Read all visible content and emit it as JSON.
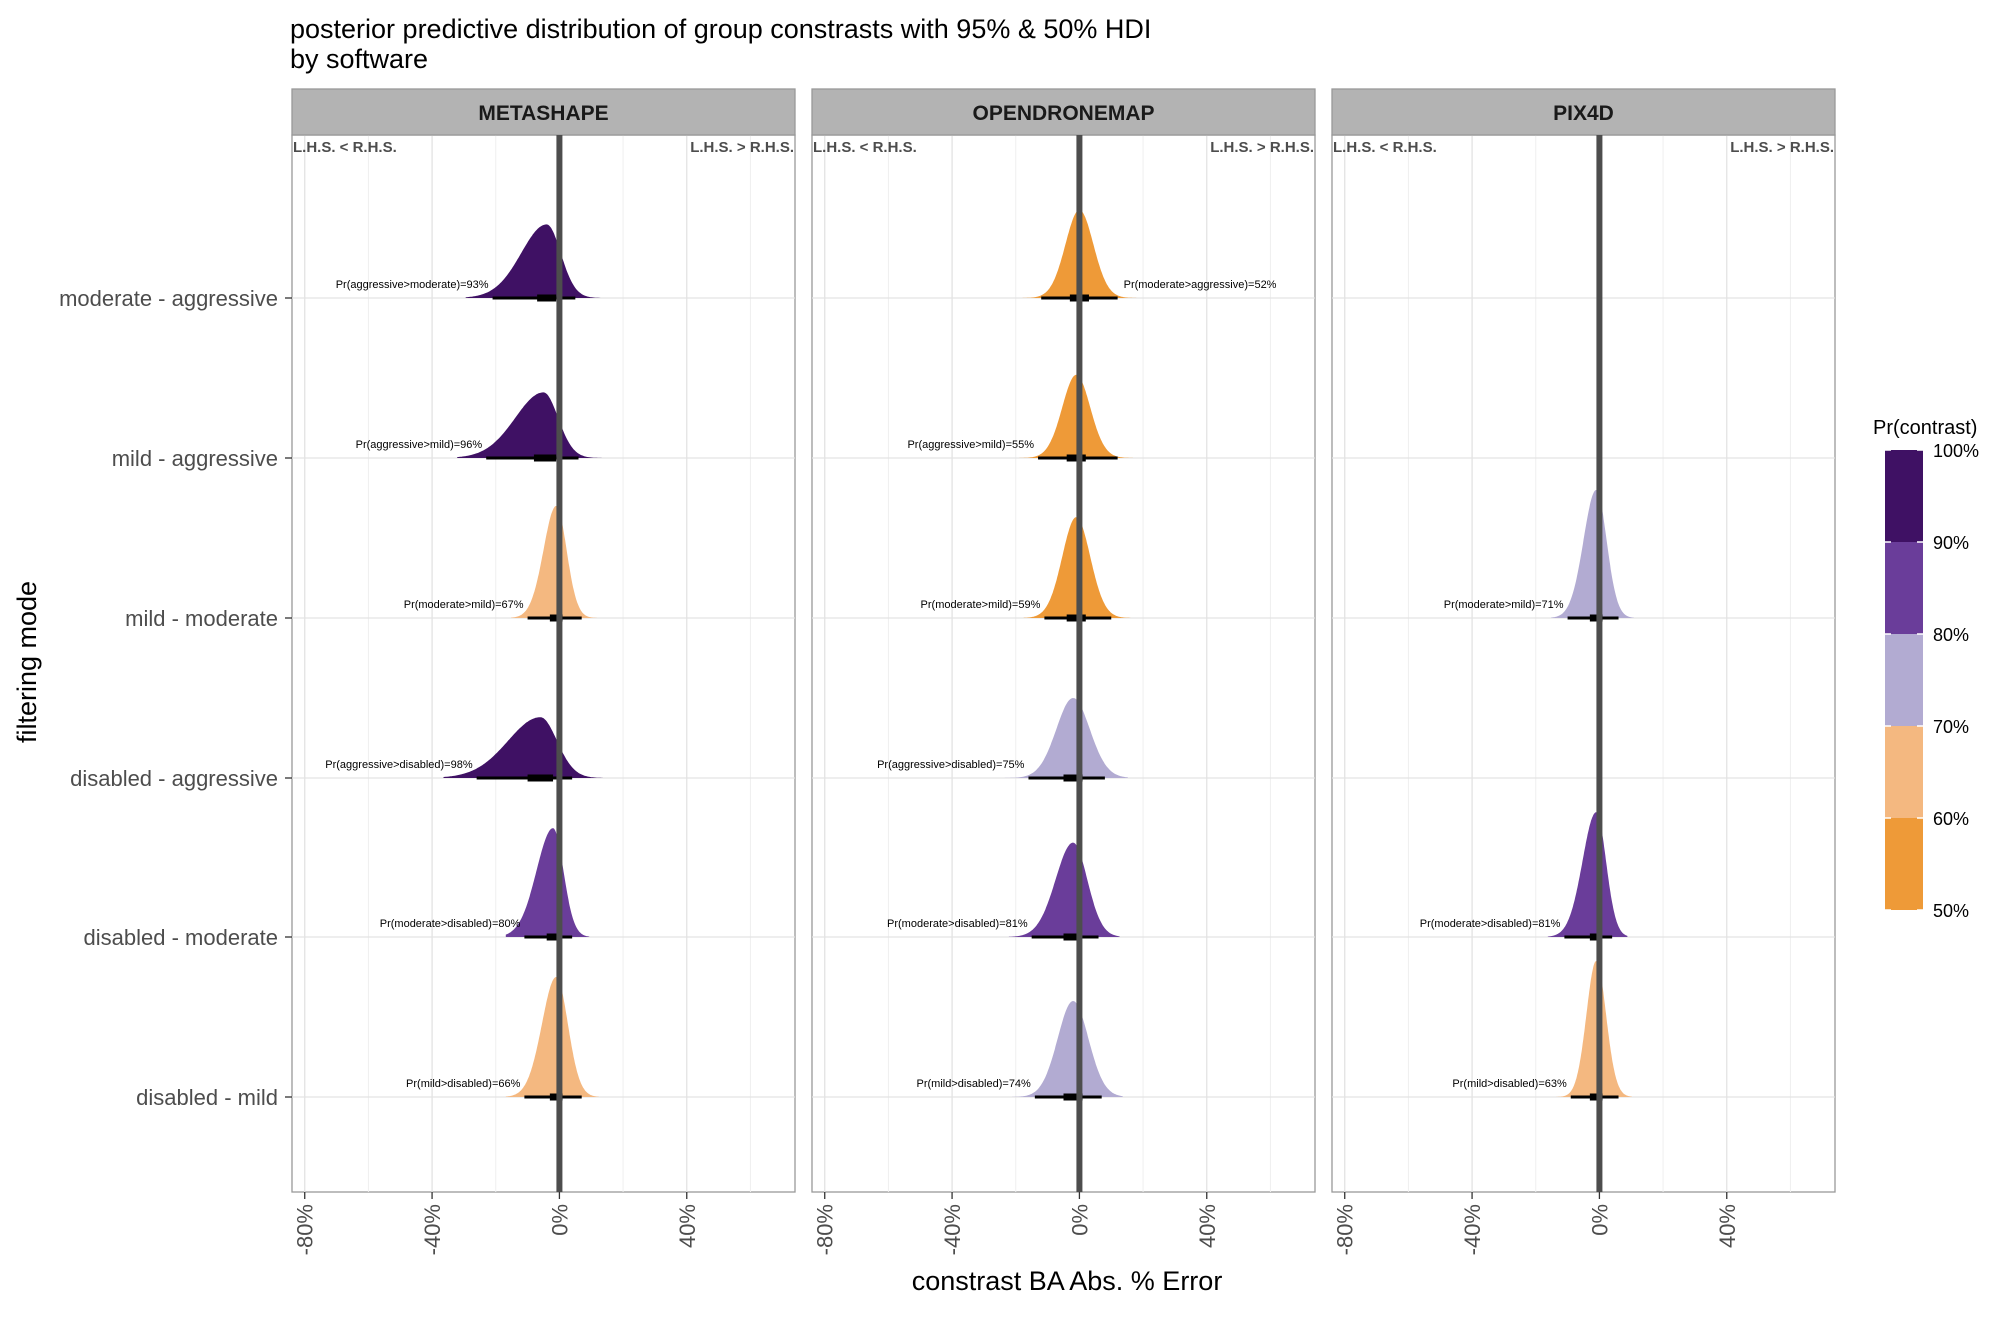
{
  "chart_data": {
    "type": "density",
    "title": "posterior predictive distribution of group constrasts with 95% & 50% HDI",
    "subtitle": "by software",
    "xlabel": "constrast BA Abs. % Error",
    "ylabel": "filtering mode",
    "xlim": [
      -84,
      74
    ],
    "xticks": [
      -80,
      -40,
      0,
      40
    ],
    "xtick_labels": [
      "-80%",
      "-40%",
      "0%",
      "40%"
    ],
    "categories": [
      "moderate - aggressive",
      "mild - aggressive",
      "mild - moderate",
      "disabled - aggressive",
      "disabled - moderate",
      "disabled - mild"
    ],
    "side_labels": {
      "left": "L.H.S. < R.H.S.",
      "right": "L.H.S. > R.H.S."
    },
    "reference_line_x": 0,
    "legend": {
      "title": "Pr(contrast)",
      "position": "right",
      "labels": [
        "100%",
        "90%",
        "80%",
        "70%",
        "60%",
        "50%"
      ],
      "colors": [
        "#3f1164",
        "#6a3d9a",
        "#b2abd2",
        "#f4b880",
        "#ee9a38"
      ]
    },
    "panels": [
      {
        "name": "METASHAPE",
        "contrasts": [
          {
            "category": "moderate - aggressive",
            "median": -4,
            "hdi95": [
              -21,
              5
            ],
            "hdi50": [
              -7,
              -1
            ],
            "sd": 6.5,
            "skew": -0.9,
            "peak": 0.46,
            "color": "#3f1164",
            "label": "Pr(aggressive>moderate)=93%"
          },
          {
            "category": "mild - aggressive",
            "median": -5,
            "hdi95": [
              -23,
              6
            ],
            "hdi50": [
              -8,
              -1
            ],
            "sd": 7,
            "skew": -1.0,
            "peak": 0.41,
            "color": "#3f1164",
            "label": "Pr(aggressive>mild)=96%"
          },
          {
            "category": "mild - moderate",
            "median": -1,
            "hdi95": [
              -10,
              7
            ],
            "hdi50": [
              -3,
              1
            ],
            "sd": 4,
            "skew": -0.3,
            "peak": 0.7,
            "color": "#f4b880",
            "label": "Pr(moderate>mild)=67%"
          },
          {
            "category": "disabled - aggressive",
            "median": -6,
            "hdi95": [
              -26,
              4
            ],
            "hdi50": [
              -10,
              -2
            ],
            "sd": 8,
            "skew": -1.0,
            "peak": 0.38,
            "color": "#3f1164",
            "label": "Pr(aggressive>disabled)=98%"
          },
          {
            "category": "disabled - moderate",
            "median": -2,
            "hdi95": [
              -11,
              4
            ],
            "hdi50": [
              -4,
              0
            ],
            "sd": 4.5,
            "skew": -0.7,
            "peak": 0.68,
            "color": "#6a3d9a",
            "label": "Pr(moderate>disabled)=80%"
          },
          {
            "category": "disabled - mild",
            "median": -1,
            "hdi95": [
              -11,
              7
            ],
            "hdi50": [
              -3,
              1
            ],
            "sd": 4.5,
            "skew": -0.3,
            "peak": 0.75,
            "color": "#f4b880",
            "label": "Pr(mild>disabled)=66%"
          }
        ]
      },
      {
        "name": "OPENDRONEMAP",
        "contrasts": [
          {
            "category": "moderate - aggressive",
            "median": 0,
            "hdi95": [
              -12,
              12
            ],
            "hdi50": [
              -3,
              3
            ],
            "sd": 5,
            "skew": 0,
            "peak": 0.55,
            "color": "#ee9a38",
            "label": "Pr(moderate>aggressive)=52%"
          },
          {
            "category": "mild - aggressive",
            "median": -1,
            "hdi95": [
              -13,
              12
            ],
            "hdi50": [
              -4,
              2
            ],
            "sd": 5,
            "skew": 0,
            "peak": 0.52,
            "color": "#ee9a38",
            "label": "Pr(aggressive>mild)=55%"
          },
          {
            "category": "mild - moderate",
            "median": -1,
            "hdi95": [
              -11,
              10
            ],
            "hdi50": [
              -4,
              2
            ],
            "sd": 5,
            "skew": 0,
            "peak": 0.63,
            "color": "#ee9a38",
            "label": "Pr(moderate>mild)=59%"
          },
          {
            "category": "disabled - aggressive",
            "median": -2,
            "hdi95": [
              -16,
              8
            ],
            "hdi50": [
              -5,
              1
            ],
            "sd": 6,
            "skew": 0,
            "peak": 0.5,
            "color": "#b2abd2",
            "label": "Pr(aggressive>disabled)=75%"
          },
          {
            "category": "disabled - moderate",
            "median": -2,
            "hdi95": [
              -15,
              6
            ],
            "hdi50": [
              -5,
              0
            ],
            "sd": 5.5,
            "skew": -0.3,
            "peak": 0.59,
            "color": "#6a3d9a",
            "label": "Pr(moderate>disabled)=81%"
          },
          {
            "category": "disabled - mild",
            "median": -2,
            "hdi95": [
              -14,
              7
            ],
            "hdi50": [
              -5,
              1
            ],
            "sd": 5.5,
            "skew": 0,
            "peak": 0.6,
            "color": "#b2abd2",
            "label": "Pr(mild>disabled)=74%"
          }
        ]
      },
      {
        "name": "PIX4D",
        "contrasts": [
          {
            "category": "mild - moderate",
            "median": -1,
            "hdi95": [
              -10,
              6
            ],
            "hdi50": [
              -3,
              1
            ],
            "sd": 4,
            "skew": -0.3,
            "peak": 0.8,
            "color": "#b2abd2",
            "label": "Pr(moderate>mild)=71%"
          },
          {
            "category": "disabled - moderate",
            "median": -1,
            "hdi95": [
              -11,
              4
            ],
            "hdi50": [
              -3,
              0
            ],
            "sd": 4,
            "skew": -0.5,
            "peak": 0.78,
            "color": "#6a3d9a",
            "label": "Pr(moderate>disabled)=81%"
          },
          {
            "category": "disabled - mild",
            "median": -1,
            "hdi95": [
              -9,
              6
            ],
            "hdi50": [
              -3,
              1
            ],
            "sd": 3.5,
            "skew": 0,
            "peak": 0.85,
            "color": "#f4b880",
            "label": "Pr(mild>disabled)=63%"
          }
        ]
      }
    ]
  }
}
